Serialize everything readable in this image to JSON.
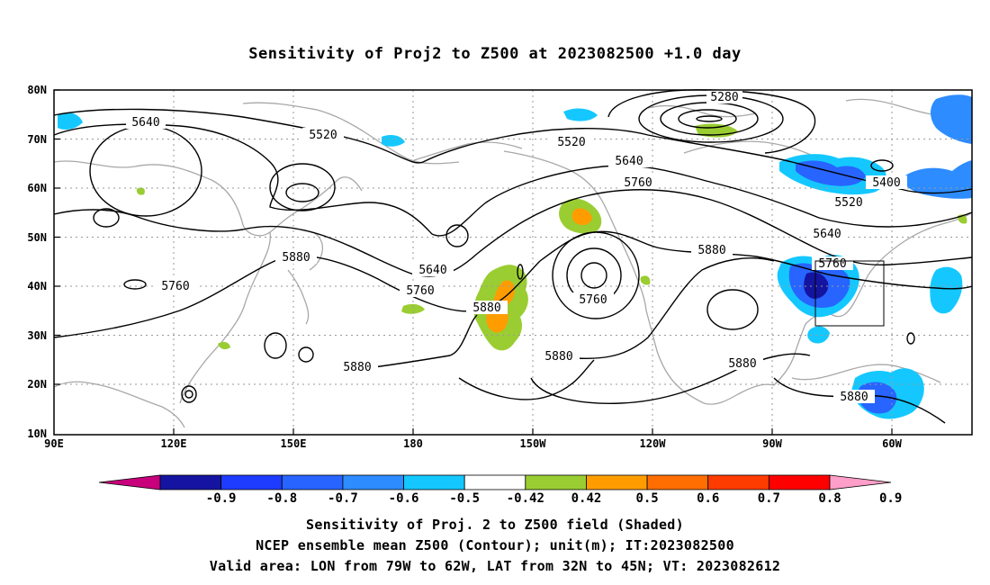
{
  "title": "Sensitivity of Proj2 to Z500 at 2023082500 +1.0 day",
  "lat_labels": [
    "80N",
    "70N",
    "60N",
    "50N",
    "40N",
    "30N",
    "20N",
    "10N"
  ],
  "lon_labels": [
    "90E",
    "120E",
    "150E",
    "180",
    "150W",
    "120W",
    "90W",
    "60W"
  ],
  "contour_labels": [
    "5280",
    "5640",
    "5520",
    "5520",
    "5640",
    "5760",
    "5400",
    "5520",
    "5640",
    "5760",
    "5640",
    "5760",
    "5880",
    "5880",
    "5760",
    "5880",
    "5760",
    "5880",
    "5880",
    "5880",
    "5880"
  ],
  "colorbar": {
    "labels": [
      "-0.9",
      "-0.8",
      "-0.7",
      "-0.6",
      "-0.5",
      "-0.42",
      "0.42",
      "0.5",
      "0.6",
      "0.7",
      "0.8",
      "0.9"
    ],
    "colors": [
      "#c8007c",
      "#1414a0",
      "#1e3cff",
      "#2864ff",
      "#2d8cff",
      "#14c8ff",
      "#ffffff",
      "#9acd32",
      "#ff9d00",
      "#ff6e00",
      "#ff3c00",
      "#ff0000",
      "#ff9ec8"
    ]
  },
  "captions": [
    "Sensitivity of Proj. 2 to Z500 field (Shaded)",
    "NCEP ensemble mean Z500 (Contour); unit(m); IT:2023082500",
    "Valid area: LON from 79W to 62W, LAT from 32N to 45N; VT: 2023082612"
  ]
}
